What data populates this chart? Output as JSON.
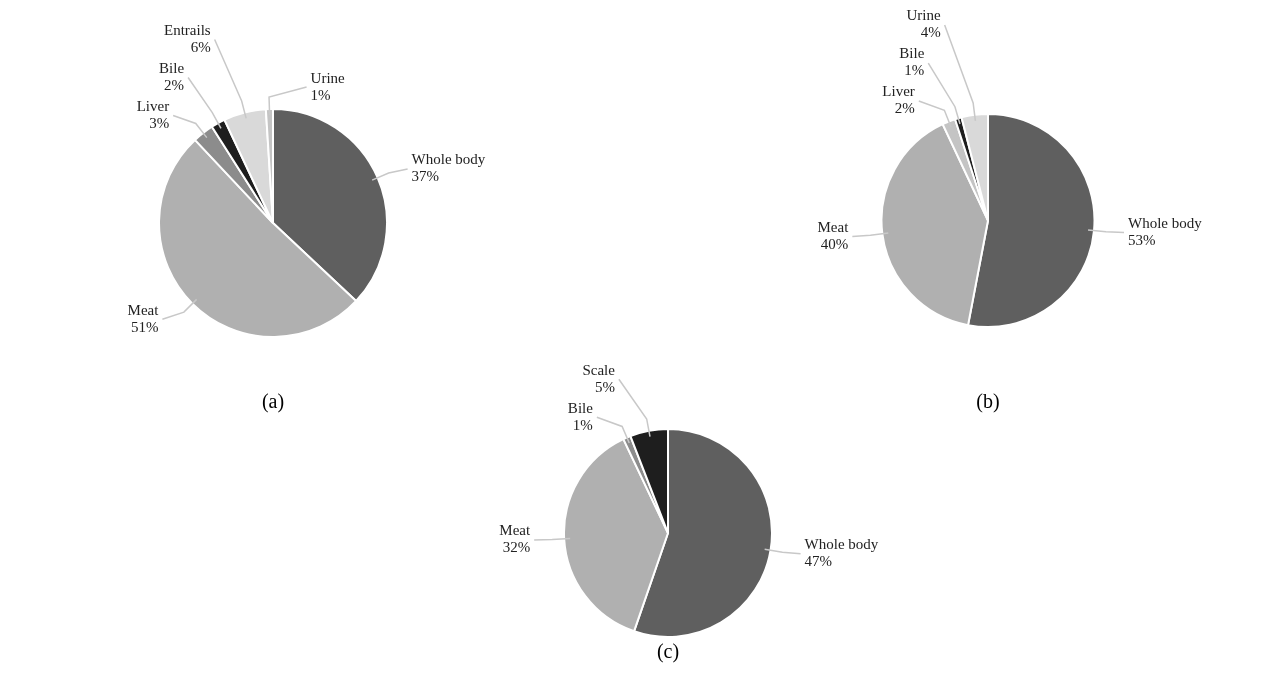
{
  "chart_data": [
    {
      "type": "pie",
      "title": "(a)",
      "categories": [
        "Whole body",
        "Meat",
        "Liver",
        "Bile",
        "Entrails",
        "Urine"
      ],
      "values": [
        37,
        51,
        3,
        2,
        6,
        1
      ],
      "value_labels": [
        "37%",
        "51%",
        "3%",
        "2%",
        "6%",
        "1%"
      ],
      "colors": [
        "#5f5f5f",
        "#b0b0b0",
        "#8c8c8c",
        "#1e1e1e",
        "#d9d9d9",
        "#c4c4c4"
      ],
      "legend": false
    },
    {
      "type": "pie",
      "title": "(b)",
      "categories": [
        "Whole body",
        "Meat",
        "Liver",
        "Bile",
        "Urine"
      ],
      "values": [
        53,
        40,
        2,
        1,
        4
      ],
      "value_labels": [
        "53%",
        "40%",
        "2%",
        "1%",
        "4%"
      ],
      "colors": [
        "#5f5f5f",
        "#b0b0b0",
        "#c4c4c4",
        "#1e1e1e",
        "#d9d9d9"
      ],
      "legend": false
    },
    {
      "type": "pie",
      "title": "(c)",
      "categories": [
        "Whole body",
        "Meat",
        "Bile",
        "Scale"
      ],
      "values": [
        47,
        32,
        1,
        5
      ],
      "value_labels": [
        "47%",
        "32%",
        "1%",
        "5%"
      ],
      "colors": [
        "#5f5f5f",
        "#b0b0b0",
        "#8c8c8c",
        "#1e1e1e"
      ],
      "legend": false
    }
  ]
}
